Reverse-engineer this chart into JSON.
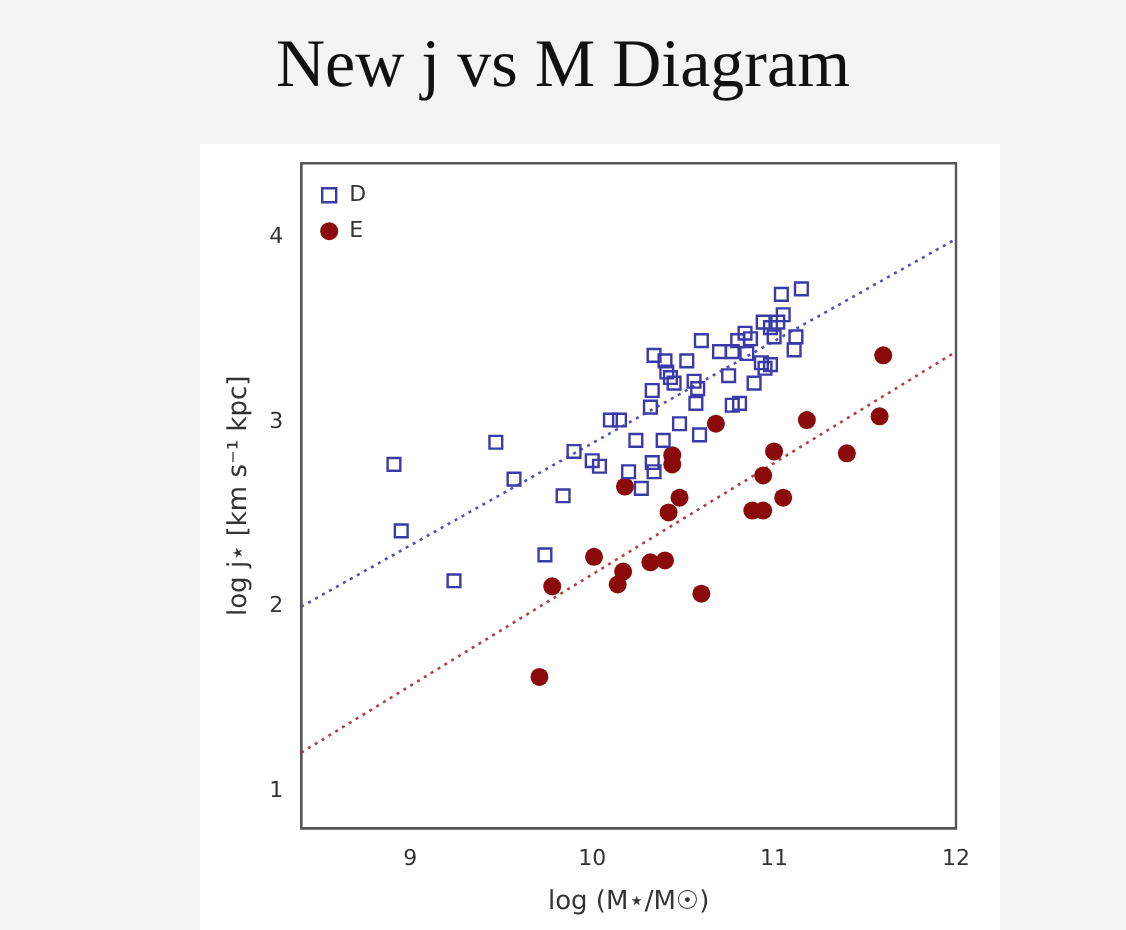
{
  "chart_data": {
    "type": "scatter",
    "title": "New j vs M Diagram",
    "xlabel": "log (M⋆/M☉)",
    "ylabel": "log j⋆ [km s⁻¹ kpc]",
    "xlim": [
      8.4,
      12
    ],
    "ylim": [
      0.8,
      4.4
    ],
    "xticks": [
      9,
      10,
      11,
      12
    ],
    "yticks": [
      1,
      2,
      3,
      4
    ],
    "grid": false,
    "legend": "top left",
    "series": [
      {
        "name": "D",
        "marker": "square",
        "color": "#3a3aa8",
        "x": [
          11.15,
          11.04,
          11.05,
          10.94,
          11.02,
          10.98,
          11.0,
          11.12,
          10.84,
          10.87,
          10.8,
          10.6,
          10.7,
          10.77,
          10.85,
          11.11,
          10.34,
          10.4,
          10.52,
          10.41,
          10.43,
          10.45,
          10.56,
          10.58,
          10.75,
          10.93,
          10.98,
          10.95,
          10.89,
          10.33,
          10.32,
          10.57,
          10.77,
          10.81,
          10.1,
          10.15,
          10.48,
          10.24,
          10.39,
          10.59,
          9.47,
          9.9,
          8.91,
          9.57,
          10.0,
          10.04,
          10.2,
          10.33,
          10.34,
          10.27,
          9.84,
          8.95,
          9.74,
          9.24
        ],
        "values": [
          3.72,
          3.69,
          3.58,
          3.54,
          3.54,
          3.51,
          3.46,
          3.46,
          3.48,
          3.45,
          3.44,
          3.44,
          3.38,
          3.38,
          3.37,
          3.39,
          3.36,
          3.33,
          3.33,
          3.27,
          3.24,
          3.21,
          3.22,
          3.18,
          3.25,
          3.32,
          3.31,
          3.29,
          3.21,
          3.17,
          3.08,
          3.1,
          3.09,
          3.1,
          3.01,
          3.01,
          2.99,
          2.9,
          2.9,
          2.93,
          2.89,
          2.84,
          2.77,
          2.69,
          2.79,
          2.76,
          2.73,
          2.78,
          2.73,
          2.64,
          2.6,
          2.41,
          2.28,
          2.14
        ]
      },
      {
        "name": "E",
        "marker": "circle",
        "color": "#8b0a0a",
        "x": [
          11.6,
          10.68,
          11.18,
          11.58,
          11.0,
          11.4,
          10.44,
          10.44,
          10.18,
          10.94,
          10.48,
          10.42,
          11.05,
          10.88,
          10.94,
          10.01,
          10.32,
          10.4,
          10.17,
          10.14,
          9.78,
          10.6,
          9.71
        ],
        "values": [
          3.36,
          2.99,
          3.01,
          3.03,
          2.84,
          2.83,
          2.82,
          2.77,
          2.65,
          2.71,
          2.59,
          2.51,
          2.59,
          2.52,
          2.52,
          2.27,
          2.24,
          2.25,
          2.19,
          2.12,
          2.11,
          2.07,
          1.62
        ]
      },
      {
        "type": "line",
        "marker": "none",
        "line_style": "dotted",
        "color": "#5050c0",
        "x": [
          8.4,
          12
        ],
        "values": [
          2.0,
          3.99
        ]
      },
      {
        "type": "line",
        "marker": "none",
        "line_style": "dotted",
        "color": "#b04040",
        "x": [
          8.4,
          12
        ],
        "values": [
          1.21,
          3.38
        ]
      }
    ]
  }
}
